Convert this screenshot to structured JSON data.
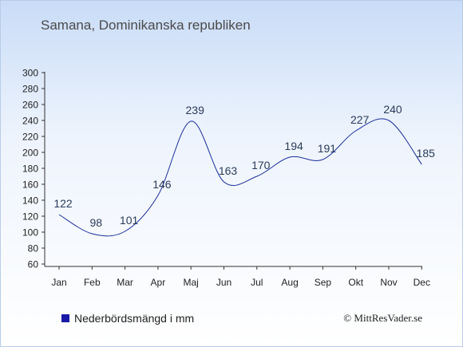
{
  "chart_title": "Samana, Dominikanska republiken",
  "legend_label": "Nederbördsmängd i mm",
  "copyright": "© MittResVader.se",
  "colors": {
    "line": "#1a2e99",
    "swatch": "#1a1aa6",
    "axis": "#333333",
    "label": "#222222"
  },
  "chart_data": {
    "type": "line",
    "title": "Samana, Dominikanska republiken",
    "xlabel": "",
    "ylabel": "",
    "categories": [
      "Jan",
      "Feb",
      "Mar",
      "Apr",
      "Maj",
      "Jun",
      "Jul",
      "Aug",
      "Sep",
      "Okt",
      "Nov",
      "Dec"
    ],
    "series": [
      {
        "name": "Nederbördsmängd i mm",
        "values": [
          122,
          98,
          101,
          146,
          239,
          163,
          170,
          194,
          191,
          227,
          240,
          185
        ]
      }
    ],
    "y_ticks": [
      60,
      80,
      100,
      120,
      140,
      160,
      180,
      200,
      220,
      240,
      260,
      280,
      300
    ],
    "ylim": [
      60,
      300
    ],
    "grid": false,
    "legend_position": "bottom-left"
  }
}
